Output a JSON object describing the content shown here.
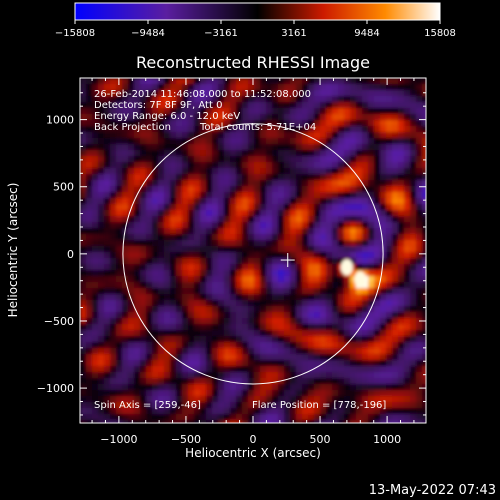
{
  "colorbar": {
    "tick_labels": [
      "−15808",
      "−9484",
      "−3161",
      "3161",
      "9484",
      "15808"
    ],
    "range": [
      -15808,
      15808
    ]
  },
  "title": "Reconstructed RHESSI Image",
  "info": {
    "time": "26-Feb-2014 11:46:08.000 to 11:52:08.000",
    "detectors": "Detectors: 7F 8F 9F, Att 0",
    "energy": "Energy Range: 6.0 - 12.0 keV",
    "method": "Back Projection",
    "counts": "Total counts: 5.71E+04"
  },
  "footer": {
    "spin_axis": "Spin Axis = [259,-46]",
    "flare_position": "Flare Position = [778,-196]",
    "timestamp": "13-May-2022 07:43"
  },
  "colors": {
    "background": "#000000",
    "axis": "#ffffff",
    "limb_circle": "#ffffff"
  },
  "chart_data": {
    "type": "heatmap",
    "title": "Reconstructed RHESSI Image",
    "xlabel": "Heliocentric X (arcsec)",
    "ylabel": "Heliocentric Y (arcsec)",
    "xlim": [
      -1290,
      1290
    ],
    "ylim": [
      -1260,
      1310
    ],
    "xticks": [
      -1000,
      -500,
      0,
      500,
      1000
    ],
    "yticks": [
      -1000,
      -500,
      0,
      500,
      1000
    ],
    "xtick_labels": [
      "−1000",
      "−500",
      "0",
      "500",
      "1000"
    ],
    "ytick_labels": [
      "−1000",
      "−500",
      "0",
      "500",
      "1000"
    ],
    "colormap": "blue-purple-black-red-yellow-white",
    "color_range": [
      -15808,
      15808
    ],
    "solar_limb": {
      "center": [
        0,
        0
      ],
      "radius": 970
    },
    "spin_axis": [
      259,
      -46
    ],
    "flare_position": [
      778,
      -196
    ],
    "flare_sources": [
      {
        "x": 700,
        "y": -100
      },
      {
        "x": 800,
        "y": -190
      }
    ]
  }
}
